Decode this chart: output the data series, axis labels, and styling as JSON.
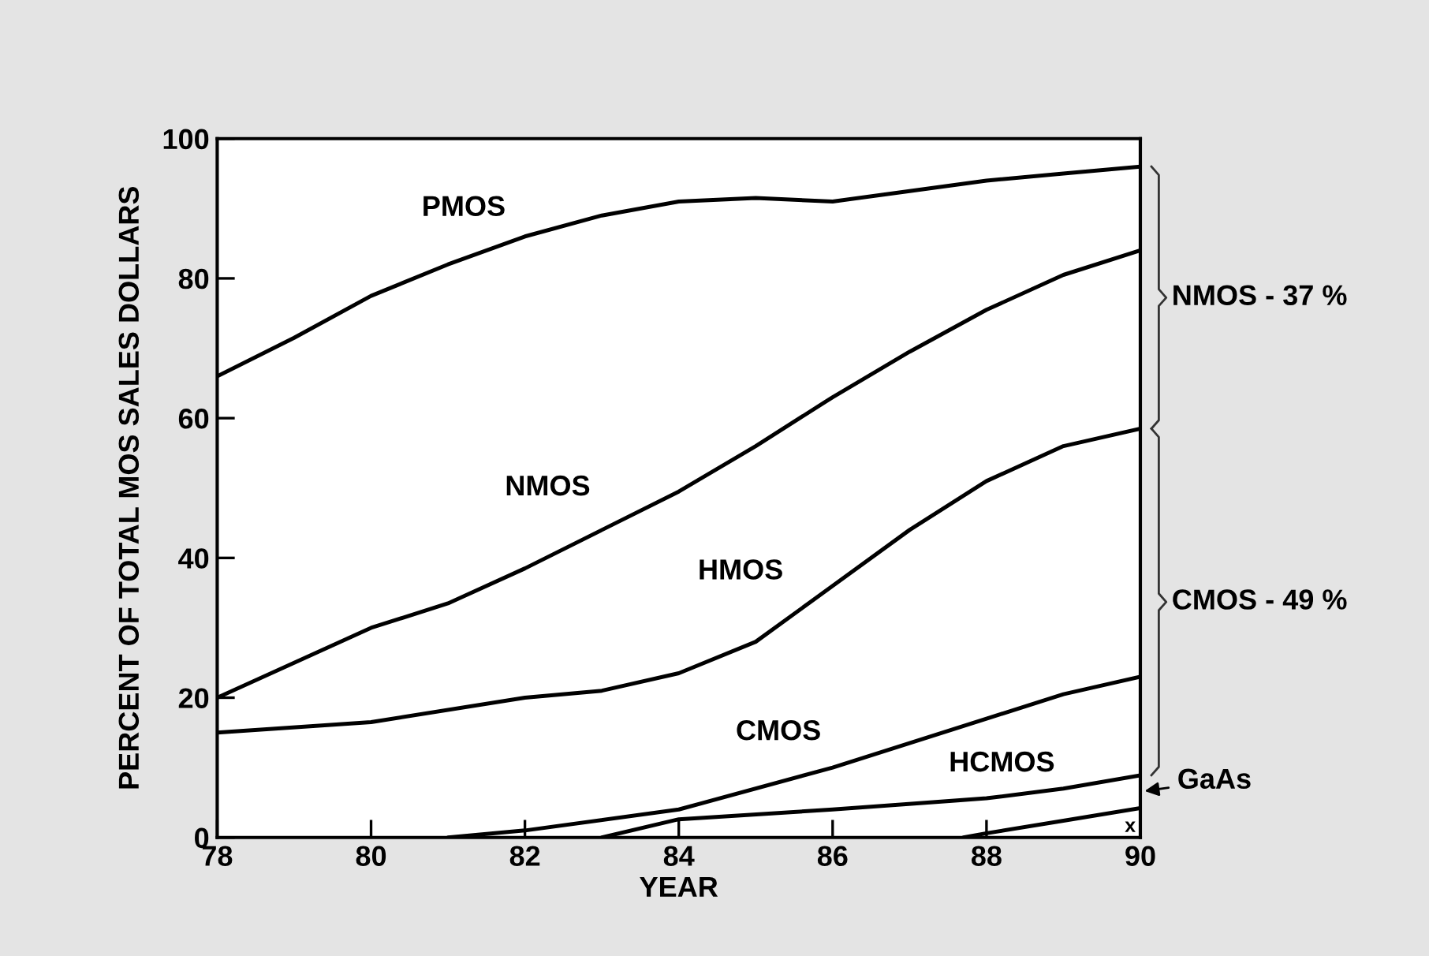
{
  "chart_data": {
    "type": "line",
    "xlabel": "YEAR",
    "ylabel": "PERCENT OF TOTAL MOS SALES DOLLARS",
    "xlim": [
      78,
      90
    ],
    "xticks": [
      78,
      80,
      82,
      84,
      86,
      88,
      90
    ],
    "ylim": [
      0,
      100
    ],
    "yticks": [
      0,
      20,
      40,
      60,
      80,
      100
    ],
    "series": [
      {
        "color": "#000000",
        "x": [
          78,
          79,
          80,
          81,
          82,
          83,
          84,
          85,
          86,
          87,
          88,
          89,
          90
        ],
        "values": [
          66,
          71.5,
          77.5,
          82,
          86,
          89,
          91,
          91.5,
          91,
          92.5,
          94,
          95,
          96
        ]
      },
      {
        "color": "#000000",
        "x": [
          78,
          79,
          80,
          81,
          82,
          83,
          84,
          85,
          86,
          87,
          88,
          89,
          90
        ],
        "values": [
          20,
          25,
          30,
          33.5,
          38.5,
          44,
          49.5,
          56,
          63,
          69.5,
          75.5,
          80.5,
          84
        ]
      },
      {
        "color": "#000000",
        "x": [
          78,
          80,
          82,
          83,
          84,
          85,
          86,
          87,
          88,
          89,
          90
        ],
        "values": [
          15,
          16.5,
          20,
          21,
          23.5,
          28,
          36,
          44,
          51,
          56,
          58.5
        ]
      },
      {
        "color": "#000000",
        "x": [
          81,
          82,
          84,
          86,
          88,
          89,
          90
        ],
        "values": [
          0,
          1,
          4,
          10,
          17,
          20.5,
          23
        ]
      },
      {
        "color": "#000000",
        "x": [
          83,
          84,
          86,
          88,
          89,
          90
        ],
        "values": [
          0,
          2.6,
          4,
          5.6,
          7,
          8.9
        ]
      },
      {
        "color": "#000000",
        "x": [
          87.7,
          88,
          89,
          90
        ],
        "values": [
          0,
          0.6,
          2.4,
          4.2
        ]
      }
    ],
    "annotations": [
      "PMOS",
      "NMOS",
      "HMOS",
      "CMOS",
      "HCMOS",
      "GaAs",
      "x",
      "NMOS - 37 %",
      "CMOS - 49 %"
    ]
  }
}
